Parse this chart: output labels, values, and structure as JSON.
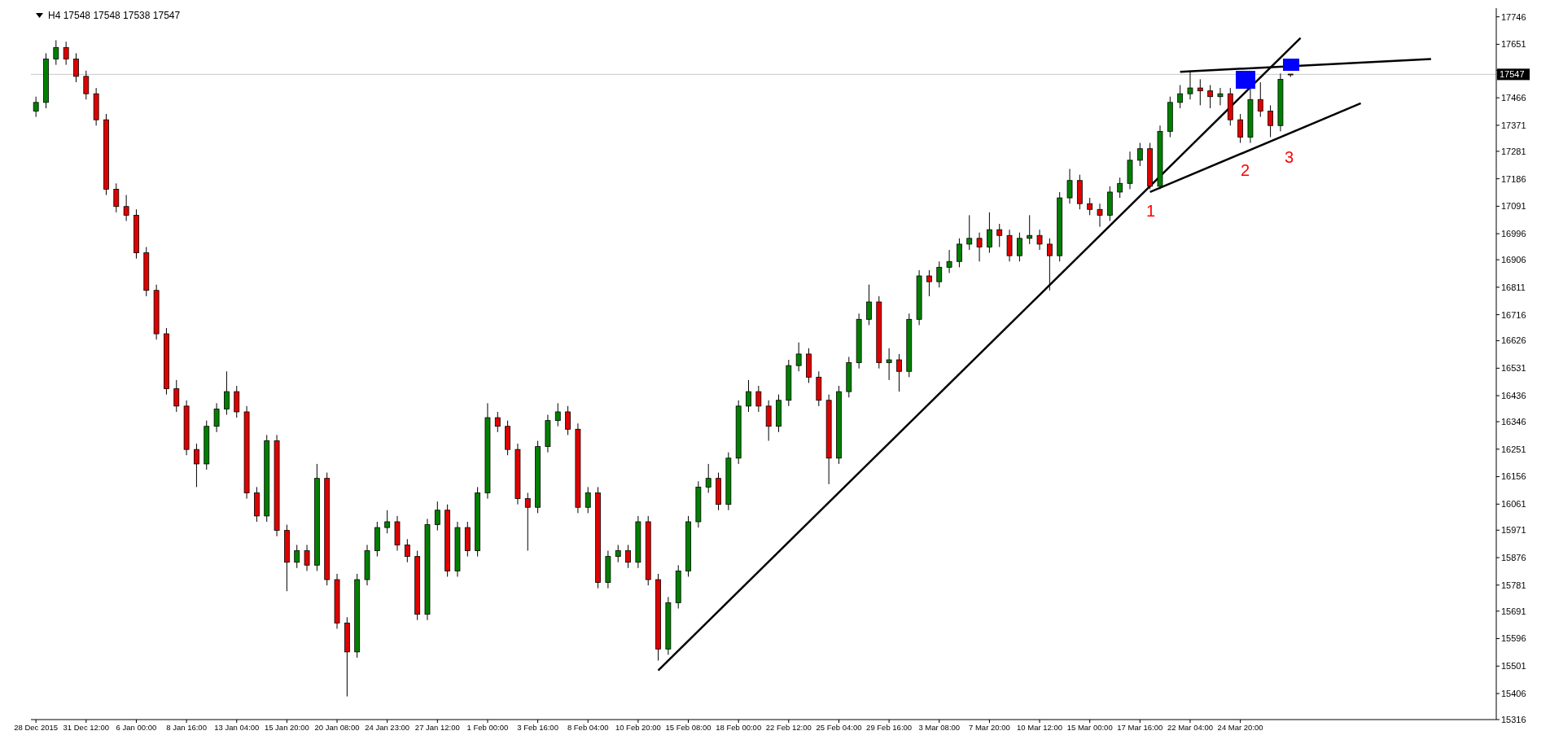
{
  "chart_data": {
    "type": "candlestick",
    "title": "H4  17548 17548 17538 17547",
    "categories": [
      "28 Dec 2015",
      null,
      null,
      null,
      null,
      "31 Dec 12:00",
      null,
      null,
      null,
      null,
      "6 Jan 00:00",
      null,
      null,
      null,
      null,
      "8 Jan 16:00",
      null,
      null,
      null,
      null,
      "13 Jan 04:00",
      null,
      null,
      null,
      null,
      "15 Jan 20:00",
      null,
      null,
      null,
      null,
      "20 Jan 08:00",
      null,
      null,
      null,
      null,
      "24 Jan 23:00",
      null,
      null,
      null,
      null,
      "27 Jan 12:00",
      null,
      null,
      null,
      null,
      "1 Feb 00:00",
      null,
      null,
      null,
      null,
      "3 Feb 16:00",
      null,
      null,
      null,
      null,
      "8 Feb 04:00",
      null,
      null,
      null,
      null,
      "10 Feb 20:00",
      null,
      null,
      null,
      null,
      "15 Feb 08:00",
      null,
      null,
      null,
      null,
      "18 Feb 00:00",
      null,
      null,
      null,
      null,
      "22 Feb 12:00",
      null,
      null,
      null,
      null,
      "25 Feb 04:00",
      null,
      null,
      null,
      null,
      "29 Feb 16:00",
      null,
      null,
      null,
      null,
      "3 Mar 08:00",
      null,
      null,
      null,
      null,
      "7 Mar 20:00",
      null,
      null,
      null,
      null,
      "10 Mar 12:00",
      null,
      null,
      null,
      null,
      "15 Mar 00:00",
      null,
      null,
      null,
      null,
      "17 Mar 16:00",
      null,
      null,
      null,
      null,
      "22 Mar 04:00",
      null,
      null,
      null,
      null,
      "24 Mar 20:00",
      null,
      null,
      null,
      null,
      null,
      null,
      null,
      null,
      null,
      null,
      null,
      null,
      null,
      null,
      null,
      null,
      null,
      null,
      null,
      null,
      null,
      null,
      null,
      null,
      null
    ],
    "ohlc": [
      [
        17420,
        17470,
        17400,
        17450
      ],
      [
        17450,
        17620,
        17430,
        17600
      ],
      [
        17600,
        17665,
        17580,
        17640
      ],
      [
        17640,
        17660,
        17580,
        17600
      ],
      [
        17600,
        17620,
        17520,
        17540
      ],
      [
        17540,
        17560,
        17460,
        17480
      ],
      [
        17480,
        17500,
        17370,
        17390
      ],
      [
        17390,
        17410,
        17130,
        17150
      ],
      [
        17150,
        17170,
        17070,
        17090
      ],
      [
        17090,
        17130,
        17040,
        17060
      ],
      [
        17060,
        17080,
        16910,
        16930
      ],
      [
        16930,
        16950,
        16780,
        16800
      ],
      [
        16800,
        16820,
        16630,
        16650
      ],
      [
        16650,
        16670,
        16440,
        16460
      ],
      [
        16460,
        16490,
        16380,
        16400
      ],
      [
        16400,
        16420,
        16230,
        16250
      ],
      [
        16250,
        16270,
        16120,
        16200
      ],
      [
        16200,
        16350,
        16180,
        16330
      ],
      [
        16330,
        16410,
        16310,
        16390
      ],
      [
        16390,
        16520,
        16370,
        16450
      ],
      [
        16450,
        16470,
        16360,
        16380
      ],
      [
        16380,
        16400,
        16080,
        16100
      ],
      [
        16100,
        16120,
        16000,
        16020
      ],
      [
        16020,
        16300,
        16000,
        16280
      ],
      [
        16280,
        16300,
        15950,
        15970
      ],
      [
        15970,
        15990,
        15760,
        15860
      ],
      [
        15860,
        15920,
        15840,
        15900
      ],
      [
        15900,
        15920,
        15830,
        15850
      ],
      [
        15850,
        16200,
        15830,
        16150
      ],
      [
        16150,
        16170,
        15780,
        15800
      ],
      [
        15800,
        15820,
        15630,
        15650
      ],
      [
        15650,
        15670,
        15396,
        15550
      ],
      [
        15550,
        15820,
        15530,
        15800
      ],
      [
        15800,
        15920,
        15780,
        15900
      ],
      [
        15900,
        16000,
        15880,
        15980
      ],
      [
        15980,
        16040,
        15960,
        16000
      ],
      [
        16000,
        16020,
        15900,
        15920
      ],
      [
        15920,
        15940,
        15860,
        15880
      ],
      [
        15880,
        15900,
        15660,
        15680
      ],
      [
        15680,
        16010,
        15660,
        15990
      ],
      [
        15990,
        16070,
        15970,
        16040
      ],
      [
        16040,
        16060,
        15810,
        15830
      ],
      [
        15830,
        16000,
        15810,
        15980
      ],
      [
        15980,
        16000,
        15880,
        15900
      ],
      [
        15900,
        16120,
        15880,
        16100
      ],
      [
        16100,
        16410,
        16080,
        16360
      ],
      [
        16360,
        16380,
        16310,
        16330
      ],
      [
        16330,
        16350,
        16230,
        16250
      ],
      [
        16250,
        16270,
        16060,
        16080
      ],
      [
        16080,
        16100,
        15900,
        16050
      ],
      [
        16050,
        16280,
        16030,
        16260
      ],
      [
        16260,
        16370,
        16240,
        16350
      ],
      [
        16350,
        16410,
        16330,
        16380
      ],
      [
        16380,
        16400,
        16300,
        16320
      ],
      [
        16320,
        16340,
        16030,
        16050
      ],
      [
        16050,
        16120,
        16030,
        16100
      ],
      [
        16100,
        16120,
        15770,
        15790
      ],
      [
        15790,
        15900,
        15770,
        15880
      ],
      [
        15880,
        15920,
        15860,
        15900
      ],
      [
        15900,
        15920,
        15840,
        15860
      ],
      [
        15860,
        16020,
        15840,
        16000
      ],
      [
        16000,
        16020,
        15780,
        15800
      ],
      [
        15800,
        15820,
        15520,
        15560
      ],
      [
        15560,
        15740,
        15540,
        15720
      ],
      [
        15720,
        15850,
        15700,
        15830
      ],
      [
        15830,
        16020,
        15810,
        16000
      ],
      [
        16000,
        16140,
        15980,
        16120
      ],
      [
        16120,
        16200,
        16100,
        16150
      ],
      [
        16150,
        16170,
        16040,
        16060
      ],
      [
        16060,
        16240,
        16040,
        16220
      ],
      [
        16220,
        16420,
        16200,
        16400
      ],
      [
        16400,
        16490,
        16380,
        16450
      ],
      [
        16450,
        16470,
        16380,
        16400
      ],
      [
        16400,
        16420,
        16280,
        16330
      ],
      [
        16330,
        16440,
        16310,
        16420
      ],
      [
        16420,
        16560,
        16400,
        16540
      ],
      [
        16540,
        16620,
        16520,
        16580
      ],
      [
        16580,
        16600,
        16480,
        16500
      ],
      [
        16500,
        16520,
        16400,
        16420
      ],
      [
        16420,
        16440,
        16130,
        16220
      ],
      [
        16220,
        16470,
        16200,
        16450
      ],
      [
        16450,
        16570,
        16430,
        16550
      ],
      [
        16550,
        16720,
        16530,
        16700
      ],
      [
        16700,
        16820,
        16680,
        16760
      ],
      [
        16760,
        16780,
        16530,
        16550
      ],
      [
        16550,
        16600,
        16490,
        16560
      ],
      [
        16560,
        16580,
        16450,
        16520
      ],
      [
        16520,
        16720,
        16500,
        16700
      ],
      [
        16700,
        16870,
        16680,
        16850
      ],
      [
        16850,
        16870,
        16780,
        16830
      ],
      [
        16830,
        16900,
        16810,
        16880
      ],
      [
        16880,
        16940,
        16860,
        16900
      ],
      [
        16900,
        16980,
        16880,
        16960
      ],
      [
        16960,
        17060,
        16940,
        16980
      ],
      [
        16980,
        17000,
        16900,
        16950
      ],
      [
        16950,
        17070,
        16930,
        17010
      ],
      [
        17010,
        17030,
        16950,
        16990
      ],
      [
        16990,
        17010,
        16900,
        16920
      ],
      [
        16920,
        17000,
        16900,
        16980
      ],
      [
        16980,
        17060,
        16960,
        16990
      ],
      [
        16990,
        17010,
        16940,
        16960
      ],
      [
        16960,
        16980,
        16800,
        16920
      ],
      [
        16920,
        17140,
        16900,
        17120
      ],
      [
        17120,
        17220,
        17100,
        17180
      ],
      [
        17180,
        17200,
        17080,
        17100
      ],
      [
        17100,
        17120,
        17060,
        17080
      ],
      [
        17080,
        17100,
        17020,
        17060
      ],
      [
        17060,
        17160,
        17040,
        17140
      ],
      [
        17140,
        17190,
        17120,
        17170
      ],
      [
        17170,
        17280,
        17150,
        17250
      ],
      [
        17250,
        17310,
        17230,
        17290
      ],
      [
        17290,
        17310,
        17150,
        17160
      ],
      [
        17160,
        17370,
        17150,
        17350
      ],
      [
        17350,
        17470,
        17330,
        17450
      ],
      [
        17450,
        17510,
        17430,
        17480
      ],
      [
        17480,
        17560,
        17460,
        17500
      ],
      [
        17500,
        17530,
        17440,
        17490
      ],
      [
        17490,
        17510,
        17430,
        17470
      ],
      [
        17470,
        17500,
        17440,
        17480
      ],
      [
        17480,
        17500,
        17370,
        17390
      ],
      [
        17390,
        17410,
        17310,
        17330
      ],
      [
        17330,
        17500,
        17310,
        17460
      ],
      [
        17460,
        17520,
        17400,
        17420
      ],
      [
        17420,
        17440,
        17330,
        17370
      ],
      [
        17370,
        17550,
        17350,
        17530
      ],
      [
        17548,
        17548,
        17538,
        17547
      ],
      null,
      null,
      null,
      null,
      null,
      null,
      null,
      null,
      null,
      null,
      null,
      null,
      null,
      null,
      null,
      null,
      null,
      null,
      null,
      null
    ],
    "series": [
      {
        "type": "line",
        "color": "#000000",
        "values": [
          null,
          null,
          null,
          null,
          null,
          null,
          null,
          null,
          null,
          null,
          null,
          null,
          null,
          null,
          null,
          null,
          null,
          null,
          null,
          null,
          null,
          null,
          null,
          null,
          null,
          null,
          null,
          null,
          null,
          null,
          null,
          null,
          null,
          null,
          null,
          null,
          null,
          null,
          null,
          null,
          null,
          null,
          null,
          null,
          null,
          null,
          null,
          null,
          null,
          null,
          null,
          null,
          null,
          null,
          null,
          null,
          null,
          null,
          null,
          null,
          null,
          null,
          15486,
          null,
          null,
          null,
          null,
          null,
          null,
          null,
          null,
          null,
          null,
          null,
          null,
          null,
          null,
          null,
          null,
          null,
          null,
          null,
          null,
          null,
          null,
          null,
          null,
          null,
          null,
          null,
          null,
          null,
          null,
          null,
          null,
          null,
          null,
          null,
          null,
          null,
          null,
          null,
          null,
          null,
          null,
          null,
          null,
          null,
          null,
          null,
          null,
          null,
          null,
          null,
          null,
          null,
          null,
          null,
          null,
          null,
          null,
          null,
          null,
          null,
          null,
          null,
          17673,
          null,
          null,
          null,
          null,
          null,
          null,
          null,
          null,
          null,
          null,
          null,
          null,
          null,
          null,
          null,
          null,
          null,
          null,
          null
        ]
      },
      {
        "type": "line",
        "color": "#000000",
        "values": [
          null,
          null,
          null,
          null,
          null,
          null,
          null,
          null,
          null,
          null,
          null,
          null,
          null,
          null,
          null,
          null,
          null,
          null,
          null,
          null,
          null,
          null,
          null,
          null,
          null,
          null,
          null,
          null,
          null,
          null,
          null,
          null,
          null,
          null,
          null,
          null,
          null,
          null,
          null,
          null,
          null,
          null,
          null,
          null,
          null,
          null,
          null,
          null,
          null,
          null,
          null,
          null,
          null,
          null,
          null,
          null,
          null,
          null,
          null,
          null,
          null,
          null,
          null,
          null,
          null,
          null,
          null,
          null,
          null,
          null,
          null,
          null,
          null,
          null,
          null,
          null,
          null,
          null,
          null,
          null,
          null,
          null,
          null,
          null,
          null,
          null,
          null,
          null,
          null,
          null,
          null,
          null,
          null,
          null,
          null,
          null,
          null,
          null,
          null,
          null,
          null,
          null,
          null,
          null,
          null,
          null,
          null,
          null,
          null,
          null,
          null,
          17140,
          null,
          null,
          null,
          null,
          null,
          null,
          null,
          null,
          null,
          null,
          null,
          null,
          null,
          null,
          null,
          null,
          null,
          null,
          null,
          null,
          17447,
          null,
          null,
          null,
          null,
          null,
          null,
          null,
          null,
          null,
          null,
          null,
          null,
          null
        ]
      },
      {
        "type": "line",
        "color": "#000000",
        "values": [
          null,
          null,
          null,
          null,
          null,
          null,
          null,
          null,
          null,
          null,
          null,
          null,
          null,
          null,
          null,
          null,
          null,
          null,
          null,
          null,
          null,
          null,
          null,
          null,
          null,
          null,
          null,
          null,
          null,
          null,
          null,
          null,
          null,
          null,
          null,
          null,
          null,
          null,
          null,
          null,
          null,
          null,
          null,
          null,
          null,
          null,
          null,
          null,
          null,
          null,
          null,
          null,
          null,
          null,
          null,
          null,
          null,
          null,
          null,
          null,
          null,
          null,
          null,
          null,
          null,
          null,
          null,
          null,
          null,
          null,
          null,
          null,
          null,
          null,
          null,
          null,
          null,
          null,
          null,
          null,
          null,
          null,
          null,
          null,
          null,
          null,
          null,
          null,
          null,
          null,
          null,
          null,
          null,
          null,
          null,
          null,
          null,
          null,
          null,
          null,
          null,
          null,
          null,
          null,
          null,
          null,
          null,
          null,
          null,
          null,
          null,
          null,
          null,
          null,
          17556,
          null,
          null,
          null,
          null,
          null,
          null,
          null,
          null,
          null,
          null,
          null,
          null,
          null,
          null,
          null,
          null,
          null,
          null,
          null,
          null,
          null,
          null,
          null,
          null,
          17600,
          null,
          null,
          null,
          null,
          null,
          null
        ]
      }
    ],
    "ylim": [
      15316,
      17776
    ],
    "yticks": [
      17746,
      17651,
      {
        "value": 17561,
        "label": null
      },
      17466,
      17371,
      17281,
      17186,
      17091,
      16996,
      16906,
      16811,
      16716,
      16626,
      16531,
      16436,
      16346,
      16251,
      16156,
      16061,
      15971,
      15876,
      15781,
      15691,
      15596,
      15501,
      15406,
      15316
    ],
    "ref_lines": [
      {
        "axis": "y",
        "value": 17547,
        "label": "17547",
        "color": "#c8c8c8"
      }
    ],
    "annotations": [
      "1",
      "2",
      "3"
    ]
  }
}
